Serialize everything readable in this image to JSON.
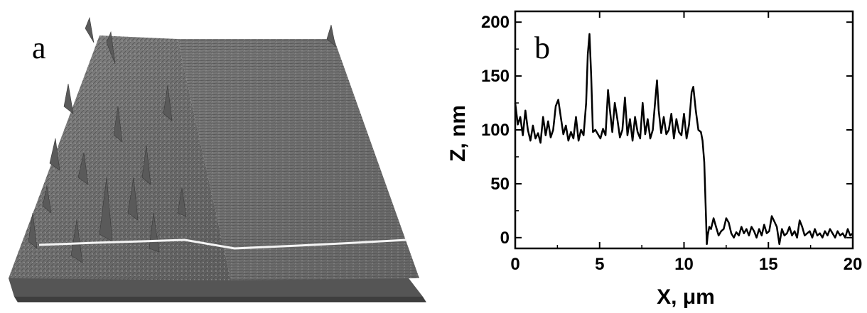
{
  "panel_a": {
    "letter": "a"
  },
  "chart_data": {
    "type": "line",
    "panel_letter": "b",
    "xlabel": "X, μm",
    "ylabel": "Z, nm",
    "xlim": [
      0,
      20
    ],
    "ylim": [
      -10,
      210
    ],
    "xticks": [
      0,
      5,
      10,
      15,
      20
    ],
    "yticks": [
      0,
      50,
      100,
      150,
      200
    ],
    "grid": false,
    "series": [
      {
        "color": "#000000",
        "x": [
          0.0,
          0.15,
          0.3,
          0.45,
          0.6,
          0.75,
          0.9,
          1.05,
          1.2,
          1.35,
          1.5,
          1.65,
          1.8,
          1.95,
          2.1,
          2.25,
          2.4,
          2.55,
          2.7,
          2.85,
          3.0,
          3.15,
          3.3,
          3.45,
          3.6,
          3.75,
          3.9,
          4.05,
          4.2,
          4.3,
          4.4,
          4.5,
          4.6,
          4.75,
          4.9,
          5.05,
          5.2,
          5.35,
          5.5,
          5.6,
          5.75,
          5.9,
          6.05,
          6.2,
          6.35,
          6.5,
          6.65,
          6.8,
          6.95,
          7.1,
          7.25,
          7.4,
          7.55,
          7.7,
          7.85,
          8.0,
          8.15,
          8.3,
          8.4,
          8.5,
          8.65,
          8.8,
          8.95,
          9.1,
          9.25,
          9.4,
          9.55,
          9.7,
          9.85,
          10.0,
          10.15,
          10.3,
          10.45,
          10.55,
          10.7,
          10.85,
          11.0,
          11.1,
          11.2,
          11.3,
          11.35,
          11.4,
          11.5,
          11.6,
          11.75,
          11.9,
          12.05,
          12.2,
          12.35,
          12.5,
          12.65,
          12.8,
          12.95,
          13.1,
          13.25,
          13.4,
          13.55,
          13.7,
          13.85,
          14.0,
          14.15,
          14.3,
          14.45,
          14.6,
          14.75,
          14.9,
          15.05,
          15.2,
          15.35,
          15.5,
          15.65,
          15.8,
          15.95,
          16.1,
          16.25,
          16.4,
          16.55,
          16.7,
          16.85,
          17.0,
          17.15,
          17.3,
          17.45,
          17.6,
          17.75,
          17.9,
          18.05,
          18.2,
          18.35,
          18.5,
          18.65,
          18.8,
          18.95,
          19.1,
          19.25,
          19.4,
          19.55,
          19.7,
          19.85,
          20.0
        ],
        "y": [
          125,
          105,
          112,
          95,
          118,
          100,
          90,
          104,
          92,
          97,
          88,
          112,
          95,
          108,
          93,
          100,
          122,
          128,
          112,
          96,
          104,
          90,
          98,
          92,
          112,
          90,
          100,
          95,
          125,
          170,
          189,
          150,
          98,
          100,
          96,
          92,
          101,
          95,
          137,
          120,
          98,
          125,
          110,
          93,
          100,
          130,
          95,
          110,
          90,
          112,
          98,
          92,
          125,
          96,
          110,
          92,
          100,
          128,
          146,
          118,
          97,
          112,
          96,
          100,
          115,
          92,
          110,
          98,
          95,
          115,
          92,
          105,
          135,
          140,
          118,
          100,
          98,
          90,
          70,
          20,
          -6,
          2,
          10,
          8,
          18,
          10,
          2,
          6,
          8,
          18,
          14,
          4,
          0,
          5,
          2,
          10,
          4,
          8,
          2,
          10,
          6,
          0,
          8,
          2,
          12,
          4,
          6,
          20,
          15,
          10,
          -6,
          8,
          2,
          4,
          10,
          2,
          6,
          0,
          16,
          10,
          2,
          4,
          6,
          0,
          8,
          2,
          4,
          0,
          6,
          2,
          8,
          4,
          0,
          6,
          2,
          4,
          0,
          8,
          2,
          4
        ]
      }
    ]
  }
}
